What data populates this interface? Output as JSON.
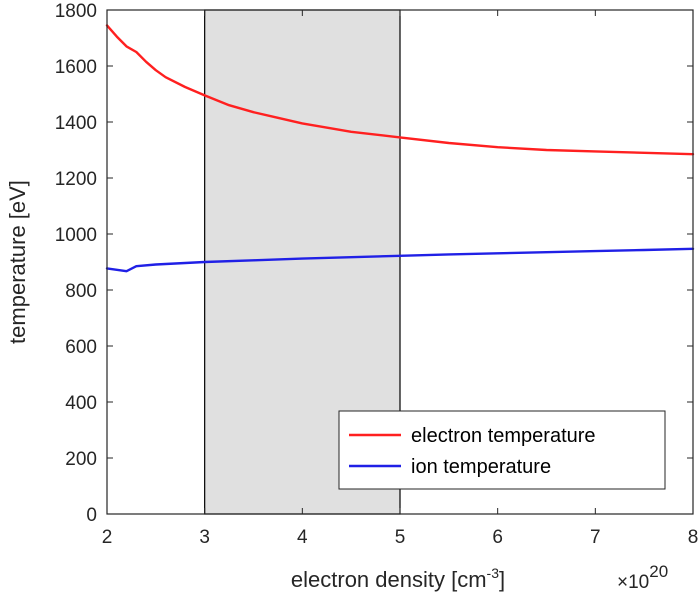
{
  "chart_data": {
    "type": "line",
    "title": "",
    "xlabel": {
      "main": "electron density [cm",
      "sup": "-3",
      "tail": "]"
    },
    "ylabel": "temperature [eV]",
    "x_multiplier": {
      "symbol": "×10",
      "exponent": "20"
    },
    "xlim": [
      2,
      8
    ],
    "ylim": [
      0,
      1800
    ],
    "x_ticks": [
      "2",
      "3",
      "4",
      "5",
      "6",
      "7",
      "8"
    ],
    "y_ticks": [
      "0",
      "200",
      "400",
      "600",
      "800",
      "1000",
      "1200",
      "1400",
      "1600",
      "1800"
    ],
    "grid": false,
    "legend_position": "bottom-right",
    "shaded_region": {
      "x_range": [
        3,
        5
      ],
      "color": "#e0e0e0"
    },
    "series": [
      {
        "name": "electron temperature",
        "color": "#ff2020",
        "x": [
          2.0,
          2.1,
          2.2,
          2.3,
          2.4,
          2.5,
          2.6,
          2.8,
          3.0,
          3.25,
          3.5,
          3.75,
          4.0,
          4.5,
          5.0,
          5.5,
          6.0,
          6.5,
          7.0,
          7.5,
          8.0
        ],
        "y": [
          1745,
          1705,
          1670,
          1650,
          1615,
          1585,
          1560,
          1525,
          1495,
          1460,
          1435,
          1415,
          1395,
          1365,
          1345,
          1325,
          1310,
          1300,
          1295,
          1290,
          1285
        ]
      },
      {
        "name": "ion temperature",
        "color": "#2020e6",
        "x": [
          2.0,
          2.1,
          2.2,
          2.3,
          2.5,
          3.0,
          3.5,
          4.0,
          4.5,
          5.0,
          5.5,
          6.0,
          6.5,
          7.0,
          7.5,
          8.0
        ],
        "y": [
          877,
          872,
          867,
          885,
          891,
          900,
          906,
          912,
          917,
          922,
          927,
          931,
          935,
          939,
          943,
          947
        ]
      }
    ]
  }
}
